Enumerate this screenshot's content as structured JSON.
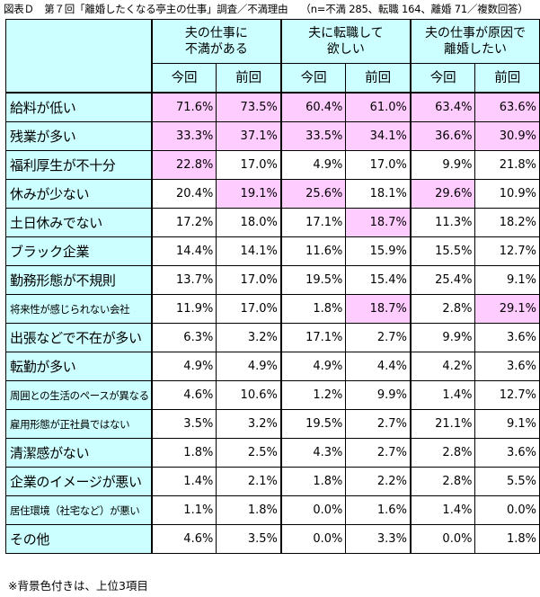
{
  "title": "図表Ｄ　第７回「離婚したくなる亭主の仕事」調査／不満理由",
  "meta": "（n=不満 285、転職 164、離婚 71／複数回答）",
  "note": "※背景色付きは、上位3項目",
  "chart_data": {
    "type": "table",
    "groups": [
      {
        "label1": "夫の仕事に",
        "label2": "不満がある"
      },
      {
        "label1": "夫に転職して",
        "label2": "欲しい"
      },
      {
        "label1": "夫の仕事が原因で",
        "label2": "離婚したい"
      }
    ],
    "subheaders": [
      "今回",
      "前回",
      "今回",
      "前回",
      "今回",
      "前回"
    ],
    "rows": [
      {
        "label": "給料が低い",
        "small": false,
        "values": [
          "71.6%",
          "73.5%",
          "60.4%",
          "61.0%",
          "63.4%",
          "63.6%"
        ],
        "highlight": [
          true,
          true,
          true,
          true,
          true,
          true
        ]
      },
      {
        "label": "残業が多い",
        "small": false,
        "values": [
          "33.3%",
          "37.1%",
          "33.5%",
          "34.1%",
          "36.6%",
          "30.9%"
        ],
        "highlight": [
          true,
          true,
          true,
          true,
          true,
          true
        ]
      },
      {
        "label": "福利厚生が不十分",
        "small": false,
        "values": [
          "22.8%",
          "17.0%",
          "4.9%",
          "17.0%",
          "9.9%",
          "21.8%"
        ],
        "highlight": [
          true,
          false,
          false,
          false,
          false,
          false
        ]
      },
      {
        "label": "休みが少ない",
        "small": false,
        "values": [
          "20.4%",
          "19.1%",
          "25.6%",
          "18.1%",
          "29.6%",
          "10.9%"
        ],
        "highlight": [
          false,
          true,
          true,
          false,
          true,
          false
        ]
      },
      {
        "label": "土日休みでない",
        "small": false,
        "values": [
          "17.2%",
          "18.0%",
          "17.1%",
          "18.7%",
          "11.3%",
          "18.2%"
        ],
        "highlight": [
          false,
          false,
          false,
          true,
          false,
          false
        ]
      },
      {
        "label": "ブラック企業",
        "small": false,
        "values": [
          "14.4%",
          "14.1%",
          "11.6%",
          "15.9%",
          "15.5%",
          "12.7%"
        ],
        "highlight": [
          false,
          false,
          false,
          false,
          false,
          false
        ]
      },
      {
        "label": "勤務形態が不規則",
        "small": false,
        "values": [
          "13.7%",
          "17.0%",
          "19.5%",
          "15.4%",
          "25.4%",
          "9.1%"
        ],
        "highlight": [
          false,
          false,
          false,
          false,
          false,
          false
        ]
      },
      {
        "label": "将来性が感じられない会社",
        "small": true,
        "values": [
          "11.9%",
          "17.0%",
          "1.8%",
          "18.7%",
          "2.8%",
          "29.1%"
        ],
        "highlight": [
          false,
          false,
          false,
          true,
          false,
          true
        ]
      },
      {
        "label": "出張などで不在が多い",
        "small": false,
        "values": [
          "6.3%",
          "3.2%",
          "17.1%",
          "2.7%",
          "9.9%",
          "3.6%"
        ],
        "highlight": [
          false,
          false,
          false,
          false,
          false,
          false
        ]
      },
      {
        "label": "転勤が多い",
        "small": false,
        "values": [
          "4.9%",
          "4.9%",
          "4.9%",
          "4.4%",
          "4.2%",
          "3.6%"
        ],
        "highlight": [
          false,
          false,
          false,
          false,
          false,
          false
        ]
      },
      {
        "label": "周囲との生活のペースが異なる",
        "small": true,
        "values": [
          "4.6%",
          "10.6%",
          "1.2%",
          "9.9%",
          "1.4%",
          "12.7%"
        ],
        "highlight": [
          false,
          false,
          false,
          false,
          false,
          false
        ]
      },
      {
        "label": "雇用形態が正社員ではない",
        "small": true,
        "values": [
          "3.5%",
          "3.2%",
          "19.5%",
          "2.7%",
          "21.1%",
          "9.1%"
        ],
        "highlight": [
          false,
          false,
          false,
          false,
          false,
          false
        ]
      },
      {
        "label": "清潔感がない",
        "small": false,
        "values": [
          "1.8%",
          "2.5%",
          "4.3%",
          "2.7%",
          "2.8%",
          "3.6%"
        ],
        "highlight": [
          false,
          false,
          false,
          false,
          false,
          false
        ]
      },
      {
        "label": "企業のイメージが悪い",
        "small": false,
        "values": [
          "1.4%",
          "2.1%",
          "1.8%",
          "2.2%",
          "2.8%",
          "5.5%"
        ],
        "highlight": [
          false,
          false,
          false,
          false,
          false,
          false
        ]
      },
      {
        "label": "居住環境（社宅など）が悪い",
        "small": true,
        "values": [
          "1.1%",
          "1.8%",
          "0.0%",
          "1.6%",
          "1.4%",
          "0.0%"
        ],
        "highlight": [
          false,
          false,
          false,
          false,
          false,
          false
        ]
      },
      {
        "label": "その他",
        "small": false,
        "values": [
          "4.6%",
          "3.5%",
          "0.0%",
          "3.3%",
          "0.0%",
          "1.8%"
        ],
        "highlight": [
          false,
          false,
          false,
          false,
          false,
          false
        ]
      }
    ],
    "colors": {
      "header_bg": "#ccffff",
      "highlight_bg": "#ffccff"
    }
  }
}
